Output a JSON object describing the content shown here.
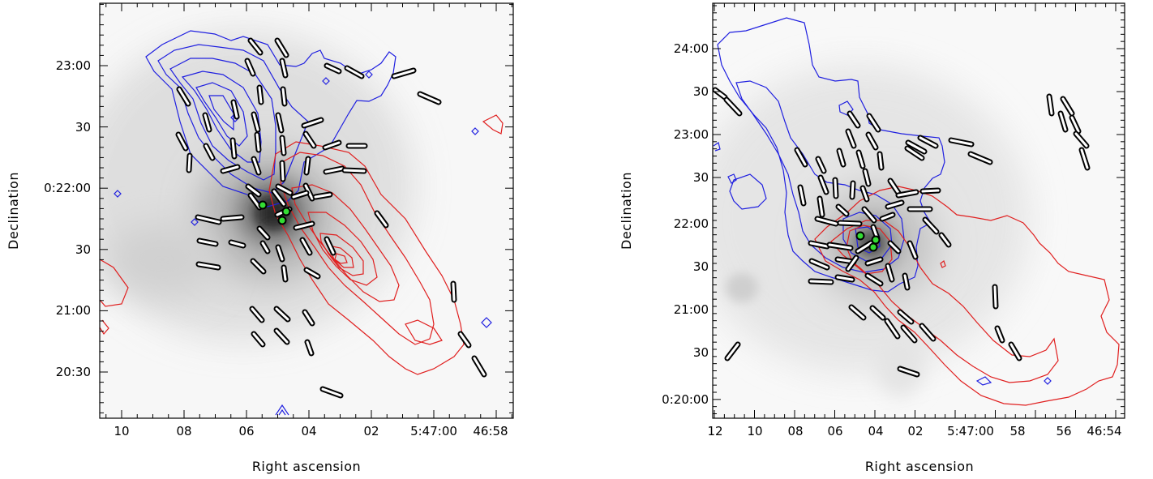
{
  "colors": {
    "blue_contours": "#1f1fe0",
    "red_contours": "#e01f1f",
    "source_markers": "#33dd33",
    "vectors_fill": "#ffffff",
    "vectors_edge": "#000000",
    "axes": "#000000"
  },
  "chart_data": [
    {
      "type": "contour-map",
      "xlabel": "Right ascension",
      "ylabel": "Declination",
      "xticks": [
        "10",
        "08",
        "06",
        "04",
        "02",
        "5:47:00",
        "46:58"
      ],
      "yticks": [
        "23:00",
        "30",
        "0:22:00",
        "30",
        "21:00",
        "20:30"
      ],
      "xlim_seconds": [
        10.6,
        57.6
      ],
      "ylim_arcsec": [
        1213,
        1302
      ],
      "series": [
        {
          "color": "blue",
          "contour_levels": 6
        },
        {
          "color": "red",
          "contour_levels": 8
        }
      ],
      "source_markers": 3,
      "polarization_vectors": 63
    },
    {
      "type": "contour-map",
      "xlabel": "Right ascension",
      "ylabel": "Declination",
      "xticks": [
        "12",
        "10",
        "08",
        "06",
        "04",
        "02",
        "5:47:00",
        "58",
        "56",
        "46:54"
      ],
      "yticks": [
        "24:00",
        "30",
        "23:00",
        "30",
        "22:00",
        "30",
        "21:00",
        "30",
        "0:20:00"
      ],
      "xlim_seconds": [
        12.1,
        53.4
      ],
      "ylim_arcsec": [
        1187,
        1326
      ],
      "series": [
        {
          "color": "blue",
          "contour_levels": 3
        },
        {
          "color": "red",
          "contour_levels": 3
        }
      ],
      "source_markers": 3,
      "polarization_vectors": 57
    }
  ]
}
